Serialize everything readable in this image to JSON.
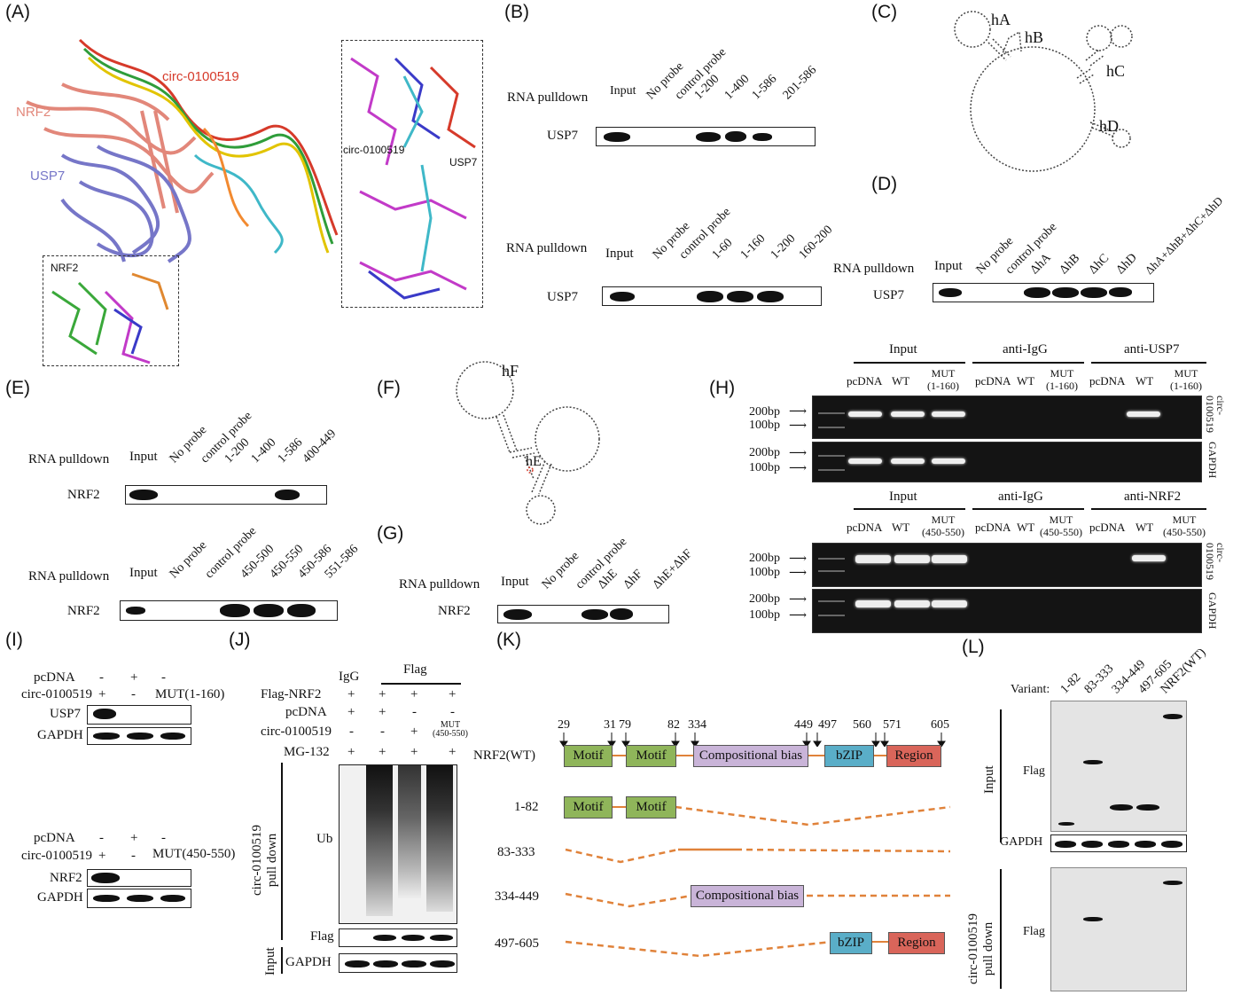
{
  "panels": {
    "A": {
      "label": "(A)",
      "circ": "circ-0100519",
      "nrf2": "NRF2",
      "usp7": "USP7",
      "inset_circ": "circ-0100519",
      "inset_usp7": "USP7",
      "inset_nrf2": "NRF2"
    },
    "B": {
      "label": "(B)",
      "row_label": "RNA pulldown",
      "protein": "USP7",
      "lanes_top": [
        "Input",
        "No probe",
        "control probe",
        "1-200",
        "1-400",
        "1-586",
        "201-586"
      ],
      "lanes_bottom": [
        "Input",
        "No probe",
        "control probe",
        "1-60",
        "1-160",
        "1-200",
        "160-200"
      ]
    },
    "C": {
      "label": "(C)",
      "loops": [
        "hA",
        "hB",
        "hC",
        "hD"
      ]
    },
    "D": {
      "label": "(D)",
      "row_label": "RNA pulldown",
      "protein": "USP7",
      "lanes": [
        "Input",
        "No probe",
        "control probe",
        "ΔhA",
        "ΔhB",
        "ΔhC",
        "ΔhD",
        "ΔhA+ΔhB+ΔhC+ΔhD"
      ]
    },
    "E": {
      "label": "(E)",
      "row_label": "RNA pulldown",
      "protein": "NRF2",
      "lanes_top": [
        "Input",
        "No probe",
        "control probe",
        "1-200",
        "1-400",
        "1-586",
        "400-449"
      ],
      "lanes_bottom": [
        "Input",
        "No probe",
        "control probe",
        "450-500",
        "450-550",
        "450-586",
        "551-586"
      ]
    },
    "F": {
      "label": "(F)",
      "loops": [
        "hF",
        "hE"
      ]
    },
    "G": {
      "label": "(G)",
      "row_label": "RNA pulldown",
      "protein": "NRF2",
      "lanes": [
        "Input",
        "No probe",
        "control probe",
        "ΔhE",
        "ΔhF",
        "ΔhE+ΔhF"
      ]
    },
    "H": {
      "label": "(H)",
      "top_groups": [
        "Input",
        "anti-IgG",
        "anti-USP7"
      ],
      "top_lanes": [
        "pcDNA",
        "WT",
        "MUT\n(1-160)",
        "pcDNA",
        "WT",
        "MUT\n(1-160)",
        "pcDNA",
        "WT",
        "MUT\n(1-160)"
      ],
      "bottom_groups": [
        "Input",
        "anti-IgG",
        "anti-NRF2"
      ],
      "bottom_lanes": [
        "pcDNA",
        "WT",
        "MUT\n(450-550)",
        "pcDNA",
        "WT",
        "MUT\n(450-550)",
        "pcDNA",
        "WT",
        "MUT\n(450-550)"
      ],
      "bp200": "200bp",
      "bp100": "100bp",
      "right_circ": "circ-\n0100519",
      "right_gapdh": "GAPDH"
    },
    "I": {
      "label": "(I)",
      "top": {
        "row1_label": "pcDNA",
        "row1": [
          "-",
          "+",
          "-"
        ],
        "row2_label": "circ-0100519",
        "row2": [
          "+",
          "-",
          "MUT(1-160)"
        ],
        "blot1": "USP7",
        "blot2": "GAPDH"
      },
      "bottom": {
        "row1_label": "pcDNA",
        "row1": [
          "-",
          "+",
          "-"
        ],
        "row2_label": "circ-0100519",
        "row2": [
          "+",
          "-",
          "MUT(450-550)"
        ],
        "blot1": "NRF2",
        "blot2": "GAPDH"
      }
    },
    "J": {
      "label": "(J)",
      "igg": "IgG",
      "flag": "Flag",
      "rows": [
        {
          "label": "Flag-NRF2",
          "vals": [
            "+",
            "+",
            "+",
            "+"
          ]
        },
        {
          "label": "pcDNA",
          "vals": [
            "+",
            "+",
            "-",
            "-"
          ]
        },
        {
          "label": "circ-0100519",
          "vals": [
            "-",
            "-",
            "+",
            "MUT\n(450-550)"
          ]
        },
        {
          "label": "MG-132",
          "vals": [
            "+",
            "+",
            "+",
            "+"
          ]
        }
      ],
      "ub": "Ub",
      "flag_blot": "Flag",
      "gapdh": "GAPDH",
      "side_pull": "circ-0100519\npull down",
      "side_input": "Input"
    },
    "K": {
      "label": "(K)",
      "positions": [
        "29",
        "31",
        "79",
        "82",
        "334",
        "449",
        "497",
        "560",
        "571",
        "605"
      ],
      "wt_label": "NRF2(WT)",
      "domains": {
        "motif": "Motif",
        "comp": "Compositional bias",
        "bzip": "bZIP",
        "region": "Region"
      },
      "variants": [
        "1-82",
        "83-333",
        "334-449",
        "497-605"
      ]
    },
    "L": {
      "label": "(L)",
      "variant_label": "Variant:",
      "lanes": [
        "1-82",
        "83-333",
        "334-449",
        "497-605",
        "NRF2(WT)"
      ],
      "input": "Input",
      "pull": "circ-0100519\npull down",
      "flag1": "Flag",
      "gapdh": "GAPDH",
      "flag2": "Flag"
    }
  },
  "colors": {
    "motif": "#8fb55a",
    "comp": "#c9b4d8",
    "bzip": "#5aaec8",
    "region": "#d9655a",
    "dash": "#e0823a",
    "circ_red": "#d63a2a",
    "circ_green": "#2f9d3a",
    "circ_yellow": "#c8b400",
    "nrf2": "#e2877a",
    "usp7": "#7676c8"
  }
}
